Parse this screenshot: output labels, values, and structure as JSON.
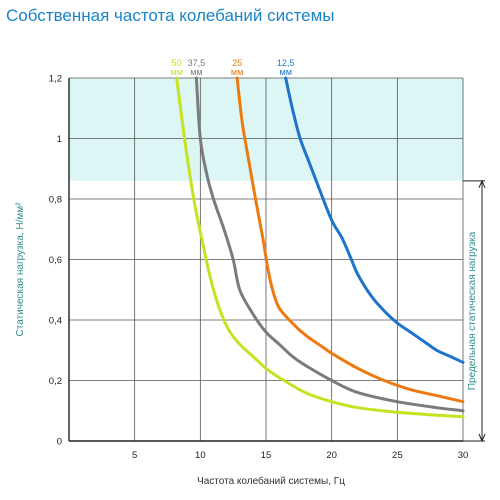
{
  "title": "Собственная частота колебаний системы",
  "chart_data": {
    "type": "line",
    "xlabel": "Частота колебаний системы, Гц",
    "ylabel": "Статическая нагрузка, Н/мм²",
    "right_label": "Предельная статическая нагрузка",
    "xlim": [
      0,
      30
    ],
    "ylim": [
      0,
      1.2
    ],
    "xticks": [
      0,
      5,
      10,
      15,
      20,
      25,
      30
    ],
    "xtick_labels": [
      "",
      "5",
      "10",
      "15",
      "20",
      "25",
      "30"
    ],
    "yticks": [
      0,
      0.2,
      0.4,
      0.6,
      0.8,
      1.0,
      1.2
    ],
    "ytick_labels": [
      "0",
      "0,2",
      "0,4",
      "0,6",
      "0,8",
      "1",
      "1,2"
    ],
    "grid": true,
    "overload_zone": {
      "from": 0.86,
      "to": 1.2,
      "color": "#dcf5f5"
    },
    "limit_line": 0.86,
    "series": [
      {
        "name": "50",
        "unit": "мм",
        "color": "#c6e321",
        "points": [
          [
            8.2,
            1.2
          ],
          [
            8.8,
            1.0
          ],
          [
            9.5,
            0.8
          ],
          [
            10.2,
            0.65
          ],
          [
            11.0,
            0.5
          ],
          [
            12.0,
            0.38
          ],
          [
            13.0,
            0.32
          ],
          [
            14.0,
            0.28
          ],
          [
            15.0,
            0.24
          ],
          [
            16.0,
            0.21
          ],
          [
            18.0,
            0.16
          ],
          [
            20.0,
            0.13
          ],
          [
            22.0,
            0.11
          ],
          [
            25.0,
            0.095
          ],
          [
            28.0,
            0.085
          ],
          [
            30.0,
            0.08
          ]
        ]
      },
      {
        "name": "37,5",
        "unit": "мм",
        "color": "#7b7b7d",
        "points": [
          [
            9.7,
            1.2
          ],
          [
            10.0,
            1.0
          ],
          [
            10.5,
            0.88
          ],
          [
            11.0,
            0.8
          ],
          [
            11.8,
            0.7
          ],
          [
            12.5,
            0.6
          ],
          [
            13.0,
            0.5
          ],
          [
            14.0,
            0.42
          ],
          [
            15.0,
            0.36
          ],
          [
            16.0,
            0.32
          ],
          [
            17.0,
            0.28
          ],
          [
            18.0,
            0.25
          ],
          [
            20.0,
            0.2
          ],
          [
            22.0,
            0.16
          ],
          [
            25.0,
            0.13
          ],
          [
            28.0,
            0.11
          ],
          [
            30.0,
            0.1
          ]
        ]
      },
      {
        "name": "25",
        "unit": "мм",
        "color": "#ec7a10",
        "points": [
          [
            12.8,
            1.2
          ],
          [
            13.2,
            1.05
          ],
          [
            13.8,
            0.9
          ],
          [
            14.2,
            0.8
          ],
          [
            14.8,
            0.66
          ],
          [
            15.1,
            0.58
          ],
          [
            15.5,
            0.5
          ],
          [
            16.0,
            0.44
          ],
          [
            17.0,
            0.39
          ],
          [
            18.0,
            0.35
          ],
          [
            19.0,
            0.32
          ],
          [
            20.0,
            0.29
          ],
          [
            22.0,
            0.24
          ],
          [
            24.0,
            0.2
          ],
          [
            26.0,
            0.17
          ],
          [
            28.0,
            0.15
          ],
          [
            30.0,
            0.13
          ]
        ]
      },
      {
        "name": "12,5",
        "unit": "мм",
        "color": "#1e73cc",
        "points": [
          [
            16.5,
            1.2
          ],
          [
            17.0,
            1.1
          ],
          [
            17.6,
            1.0
          ],
          [
            18.3,
            0.92
          ],
          [
            19.0,
            0.84
          ],
          [
            20.0,
            0.73
          ],
          [
            20.8,
            0.67
          ],
          [
            21.5,
            0.6
          ],
          [
            22.0,
            0.55
          ],
          [
            23.0,
            0.48
          ],
          [
            24.0,
            0.43
          ],
          [
            25.0,
            0.39
          ],
          [
            26.0,
            0.36
          ],
          [
            27.0,
            0.33
          ],
          [
            28.0,
            0.3
          ],
          [
            29.0,
            0.28
          ],
          [
            30.0,
            0.26
          ]
        ]
      }
    ]
  }
}
